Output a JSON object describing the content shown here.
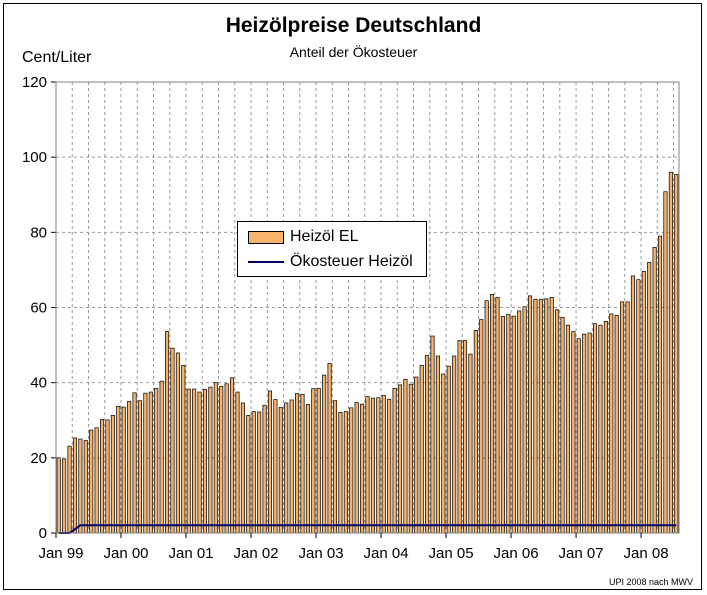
{
  "title": "Heizölpreise Deutschland",
  "subtitle": "Anteil der Ökosteuer",
  "y_unit": "Cent/Liter",
  "source": "UPI 2008 nach MWV",
  "colors": {
    "bar_fill": "#f7b26b",
    "bar_stroke": "#000000",
    "line": "#000066",
    "grid": "#999999"
  },
  "chart_data": {
    "type": "bar",
    "title": "Heizölpreise Deutschland",
    "subtitle": "Anteil der Ökosteuer",
    "ylabel": "Cent/Liter",
    "xlabel": "",
    "ylim": [
      0,
      120
    ],
    "y_ticks": [
      0,
      20,
      40,
      60,
      80,
      100,
      120
    ],
    "x_tick_labels": [
      "Jan 99",
      "Jan 00",
      "Jan 01",
      "Jan 02",
      "Jan 03",
      "Jan 04",
      "Jan 05",
      "Jan 06",
      "Jan 07",
      "Jan 08"
    ],
    "grid": true,
    "legend_position": "center",
    "start": "1999-01",
    "series": [
      {
        "name": "Heizöl EL",
        "kind": "bar",
        "values": [
          20.0,
          19.7,
          23.1,
          25.3,
          25.0,
          24.6,
          27.4,
          28.0,
          30.2,
          30.1,
          31.3,
          33.7,
          33.5,
          35.0,
          37.3,
          35.2,
          37.2,
          37.5,
          38.5,
          40.4,
          53.6,
          49.2,
          47.9,
          44.6,
          38.3,
          38.3,
          37.5,
          38.2,
          38.8,
          40.0,
          39.0,
          39.7,
          41.3,
          37.5,
          34.6,
          31.3,
          32.3,
          32.2,
          34.0,
          37.8,
          35.5,
          33.4,
          34.6,
          35.4,
          37.1,
          36.9,
          34.2,
          38.4,
          38.5,
          42.0,
          45.1,
          35.2,
          32.1,
          32.3,
          33.3,
          34.7,
          34.3,
          36.3,
          35.9,
          36.0,
          36.6,
          35.6,
          38.5,
          39.4,
          40.9,
          39.6,
          41.5,
          44.6,
          47.2,
          52.4,
          47.1,
          42.3,
          44.4,
          47.1,
          51.2,
          51.2,
          47.6,
          53.9,
          56.8,
          61.8,
          63.5,
          62.7,
          57.6,
          58.2,
          57.7,
          59.1,
          60.2,
          63.1,
          62.2,
          62.2,
          62.3,
          62.7,
          59.4,
          57.4,
          55.3,
          53.6,
          51.7,
          52.9,
          53.2,
          55.7,
          55.3,
          56.3,
          58.3,
          57.9,
          61.5,
          61.5,
          68.4,
          67.4,
          69.6,
          72.0,
          76.0,
          79.0,
          90.8,
          96.0,
          95.4
        ]
      },
      {
        "name": "Ökosteuer Heizöl",
        "kind": "line",
        "values": [
          0,
          0,
          0,
          1,
          2.05,
          2.05,
          2.05,
          2.05,
          2.05,
          2.05,
          2.05,
          2.05,
          2.05,
          2.05,
          2.05,
          2.05,
          2.05,
          2.05,
          2.05,
          2.05,
          2.05,
          2.05,
          2.05,
          2.05,
          2.05,
          2.05,
          2.05,
          2.05,
          2.05,
          2.05,
          2.05,
          2.05,
          2.05,
          2.05,
          2.05,
          2.05,
          2.05,
          2.05,
          2.05,
          2.05,
          2.05,
          2.05,
          2.05,
          2.05,
          2.05,
          2.05,
          2.05,
          2.05,
          2.05,
          2.05,
          2.05,
          2.05,
          2.05,
          2.05,
          2.05,
          2.05,
          2.05,
          2.05,
          2.05,
          2.05,
          2.05,
          2.05,
          2.05,
          2.05,
          2.05,
          2.05,
          2.05,
          2.05,
          2.05,
          2.05,
          2.05,
          2.05,
          2.05,
          2.05,
          2.05,
          2.05,
          2.05,
          2.05,
          2.05,
          2.05,
          2.05,
          2.05,
          2.05,
          2.05,
          2.05,
          2.05,
          2.05,
          2.05,
          2.05,
          2.05,
          2.05,
          2.05,
          2.05,
          2.05,
          2.05,
          2.05,
          2.05,
          2.05,
          2.05,
          2.05,
          2.05,
          2.05,
          2.05,
          2.05,
          2.05,
          2.05,
          2.05,
          2.05,
          2.05,
          2.05,
          2.05,
          2.05,
          2.05,
          2.05,
          2.05
        ]
      }
    ]
  }
}
